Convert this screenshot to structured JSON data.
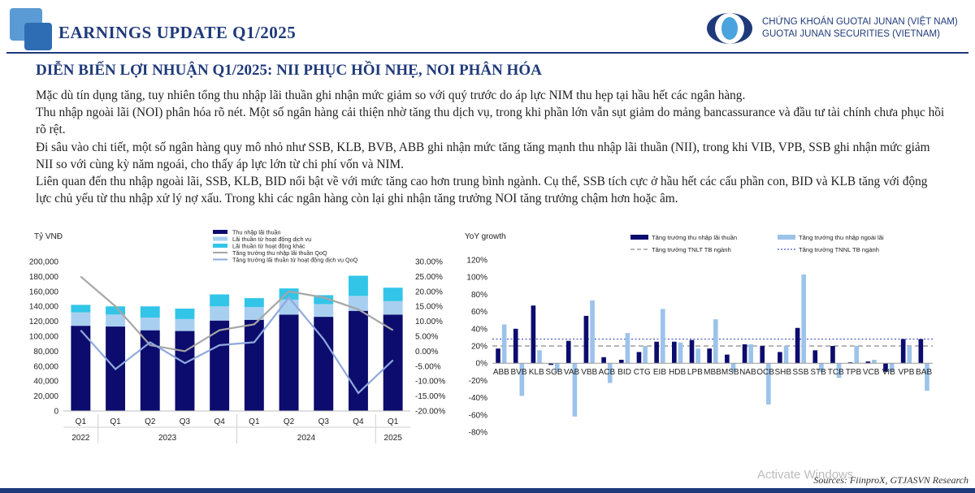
{
  "header": {
    "title": "EARNINGS UPDATE Q1/2025",
    "brand_line1": "CHỨNG KHOÁN GUOTAI JUNAN (VIỆT NAM)",
    "brand_line2": "GUOTAI JUNAN SECURITIES (VIETNAM)"
  },
  "section_title": "DIỄN BIẾN LỢI NHUẬN Q1/2025: NII PHỤC HỒI NHẸ, NOI PHÂN HÓA",
  "paragraphs": [
    "Mặc dù tín dụng tăng, tuy nhiên tổng thu nhập lãi thuần ghi nhận mức giảm so với quý trước do áp lực NIM thu hẹp tại hầu hết các ngân hàng.",
    "Thu nhập ngoài lãi (NOI) phân hóa rõ nét. Một số ngân hàng cải thiện nhờ tăng thu dịch vụ, trong khi phần lớn vẫn sụt giảm do mảng bancassurance và đầu tư tài chính chưa phục hồi rõ rệt.",
    "Đi sâu vào chi tiết, một số ngân hàng quy mô nhỏ như SSB, KLB, BVB, ABB ghi nhận mức tăng tăng mạnh thu nhập lãi thuần (NII), trong khi VIB, VPB, SSB ghi nhận mức giảm NII so với cùng kỳ năm ngoái, cho thấy áp lực lớn từ chi phí vốn và NIM.",
    "Liên quan đến thu nhập ngoài lãi, SSB, KLB, BID nổi bật về với mức tăng cao hơn trung bình ngành. Cụ thể, SSB tích cực ở hầu hết các cấu phần con, BID và KLB tăng với động lực chủ yếu từ thu nhập xử lý nợ xấu. Trong khi các ngân hàng còn lại ghi nhận tăng trưởng NOI tăng trưởng chậm hơn hoặc âm."
  ],
  "source": "Sources: FiinproX, GTJASVN Research",
  "watermark": "Activate Windows",
  "chart_data": [
    {
      "type": "bar",
      "stacked": true,
      "ylabel": "Tỷ VNĐ",
      "ylim": [
        0,
        200000
      ],
      "y_ticks": [
        "0",
        "20,000",
        "40,000",
        "60,000",
        "80,000",
        "100,000",
        "120,000",
        "140,000",
        "160,000",
        "180,000",
        "200,000"
      ],
      "y2lim": [
        -20,
        30
      ],
      "y2_ticks": [
        "-20.00%",
        "-15.00%",
        "-10.00%",
        "-5.00%",
        "0.00%",
        "5.00%",
        "10.00%",
        "15.00%",
        "20.00%",
        "25.00%",
        "30.00%"
      ],
      "categories": [
        "Q1",
        "Q1",
        "Q2",
        "Q3",
        "Q4",
        "Q1",
        "Q2",
        "Q3",
        "Q4",
        "Q1"
      ],
      "year_labels": [
        "2022",
        "2023",
        "2024",
        "2025"
      ],
      "series": [
        {
          "name": "Thu nhập lãi thuần",
          "color": "#0c0c6e",
          "values": [
            114000,
            113000,
            108000,
            107000,
            121000,
            122000,
            129000,
            126000,
            134000,
            129000
          ]
        },
        {
          "name": "Lãi thuần từ hoạt động dịch vụ",
          "color": "#a9cff0",
          "values": [
            18000,
            16000,
            17000,
            16000,
            19000,
            17000,
            20000,
            17000,
            20000,
            18000
          ]
        },
        {
          "name": "Lãi thuần từ hoạt động khác",
          "color": "#32c5e8",
          "values": [
            10000,
            11000,
            15000,
            14000,
            16000,
            12000,
            15000,
            12000,
            27000,
            18000
          ]
        }
      ],
      "lines": [
        {
          "name": "Tăng trưởng thu nhập lãi thuần QoQ",
          "color": "#a6a6a6",
          "axis": "secondary",
          "values": [
            25,
            15,
            2,
            0,
            7,
            9,
            20,
            18,
            14,
            7
          ]
        },
        {
          "name": "Tăng trưởng lãi thuần từ hoạt động dịch vụ QoQ",
          "color": "#8fa9dc",
          "axis": "secondary",
          "values": [
            7,
            -6,
            3,
            -4,
            2,
            3,
            18,
            4,
            -14,
            -3
          ]
        }
      ]
    },
    {
      "type": "bar",
      "title": "YoY growth",
      "ylim": [
        -80,
        120
      ],
      "y_ticks": [
        "-80%",
        "-60%",
        "-40%",
        "-20%",
        "0%",
        "20%",
        "40%",
        "60%",
        "80%",
        "100%",
        "120%"
      ],
      "categories": [
        "ABB",
        "BVB",
        "KLB",
        "SGB",
        "VAB",
        "VBB",
        "ACB",
        "BID",
        "CTG",
        "EIB",
        "HDB",
        "LPB",
        "MBB",
        "MSB",
        "NAB",
        "OCB",
        "SHB",
        "SSB",
        "STB",
        "TCB",
        "TPB",
        "VCB",
        "VIB",
        "VPB",
        "BAB"
      ],
      "series": [
        {
          "name": "Tăng trưởng thu nhập lãi thuần",
          "color": "#0c0c6e",
          "values": [
            17,
            40,
            67,
            -2,
            26,
            55,
            7,
            4,
            13,
            25,
            25,
            27,
            17,
            10,
            22,
            20,
            13,
            41,
            15,
            20,
            1,
            2,
            -10,
            28,
            28
          ]
        },
        {
          "name": "Tăng trưởng thu nhập ngoài lãi",
          "color": "#9cc3ea",
          "values": [
            45,
            -38,
            15,
            -10,
            -62,
            73,
            -23,
            35,
            20,
            63,
            24,
            17,
            51,
            -10,
            22,
            -48,
            20,
            103,
            -10,
            -17,
            20,
            4,
            -10,
            20,
            -32
          ]
        }
      ],
      "reference_lines": [
        {
          "name": "Tăng trưởng TNLT TB ngành",
          "value": 20,
          "style": "dashed",
          "color": "#8a8a8a"
        },
        {
          "name": "Tăng trưởng TNNL TB ngành",
          "value": 28,
          "style": "dotted",
          "color": "#4b5bbf"
        }
      ]
    }
  ]
}
